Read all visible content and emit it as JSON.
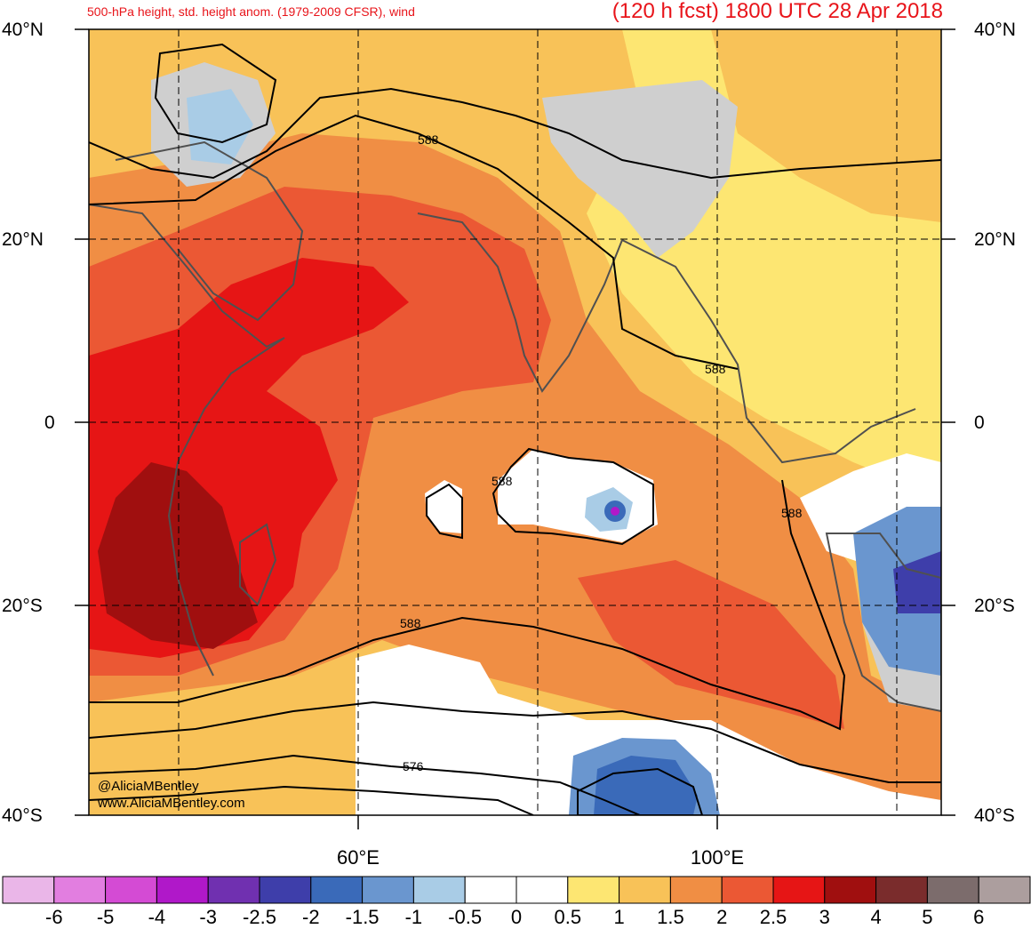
{
  "header": {
    "left_title": "500-hPa height, std. height anom. (1979-2009 CFSR), wind",
    "right_title": "(120 h fcst) 1800 UTC 28 Apr 2018"
  },
  "axes": {
    "lat_labels": [
      "40°N",
      "20°N",
      "0",
      "20°S",
      "40°S"
    ],
    "lon_labels": [
      "60°E",
      "100°E"
    ],
    "lat_range": [
      -40,
      40
    ],
    "lon_range": [
      30,
      125
    ]
  },
  "contours": {
    "labels": [
      "588",
      "588",
      "588",
      "588",
      "588",
      "576"
    ]
  },
  "watermark": {
    "line1": "@AliciaMBentley",
    "line2": "www.AliciaMBentley.com"
  },
  "colorbar": {
    "labels": [
      "-6",
      "-5",
      "-4",
      "-3",
      "-2.5",
      "-2",
      "-1.5",
      "-1",
      "-0.5",
      "0",
      "0.5",
      "1",
      "1.5",
      "2",
      "2.5",
      "3",
      "4",
      "5",
      "6"
    ],
    "colors": [
      "#eab6e8",
      "#e27ee0",
      "#d44bd4",
      "#b018c9",
      "#7030b0",
      "#3e3eaa",
      "#3a6ab9",
      "#6a96cf",
      "#a9cce6",
      "#ffffff",
      "#ffffff",
      "#fde672",
      "#f8c258",
      "#f08e44",
      "#eb5834",
      "#e61515",
      "#a00f0f",
      "#7a2c2c",
      "#7c6c6c",
      "#ac9e9e"
    ]
  },
  "colors": {
    "title": "#e8141a",
    "anomaly_neutral_gray": "#cfcfcf",
    "land_outline": "#505050"
  }
}
